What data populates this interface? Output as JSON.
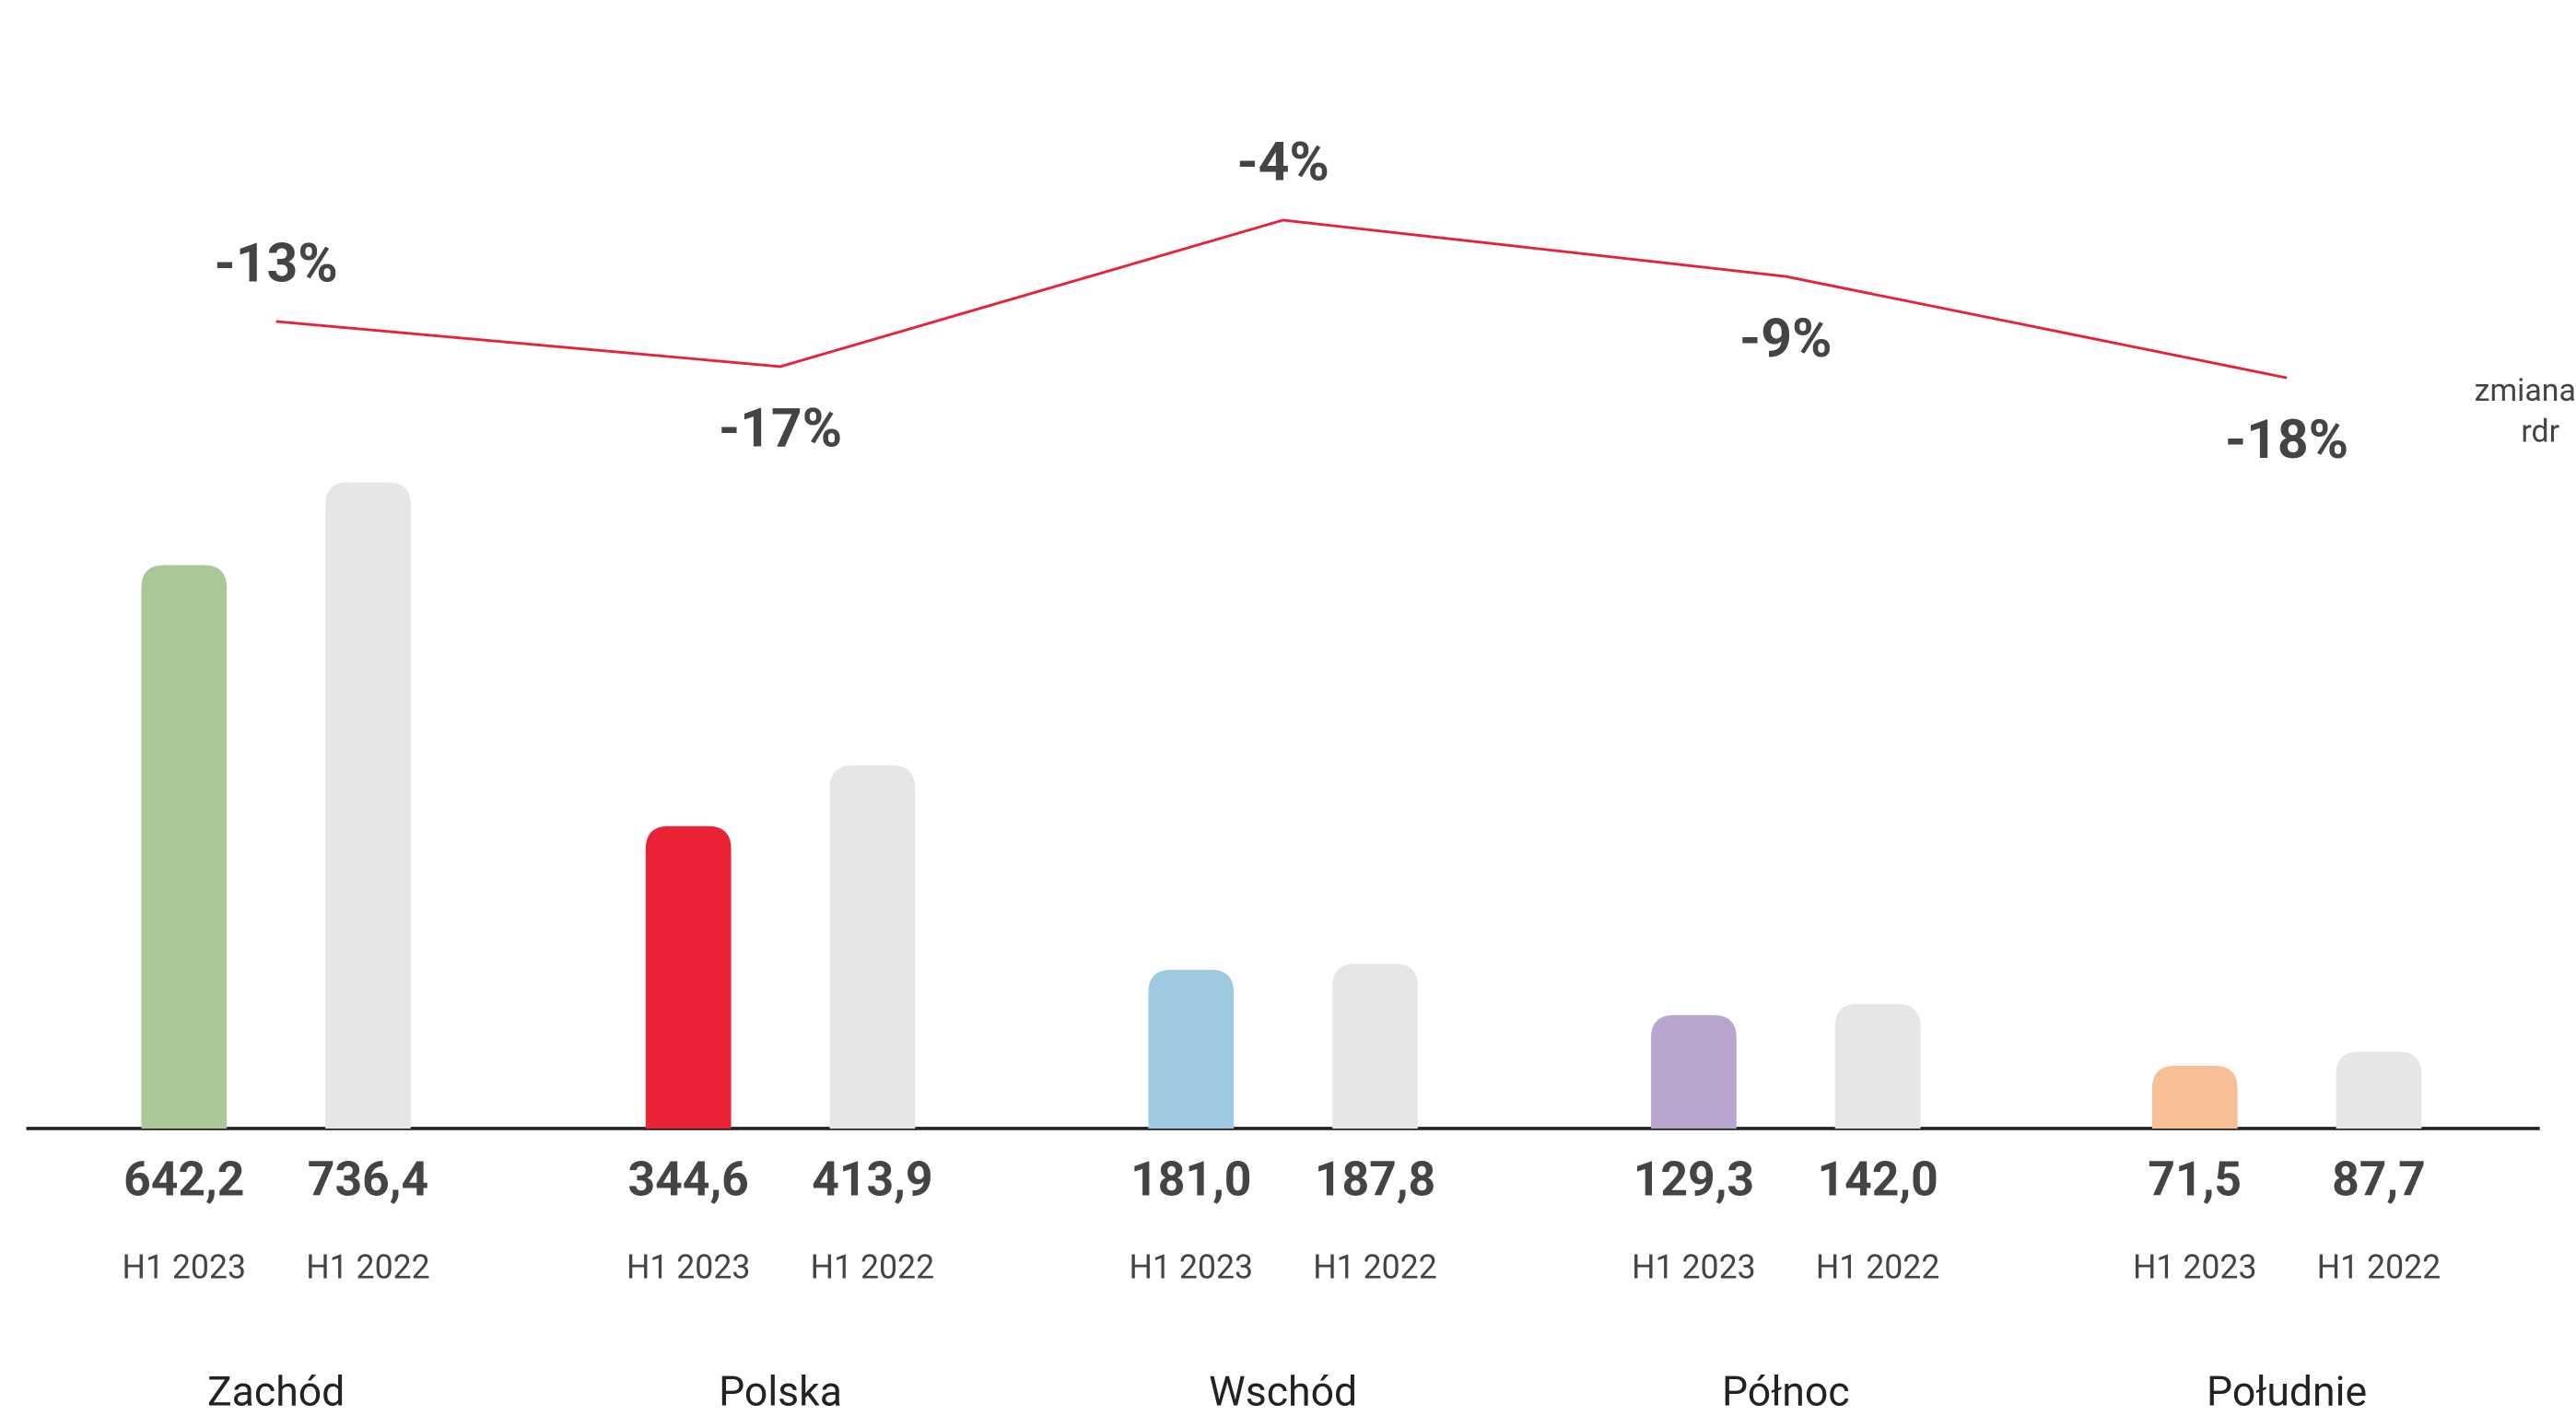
{
  "chart_data": {
    "type": "bar",
    "categories": [
      "Zachód",
      "Polska",
      "Wschód",
      "Północ",
      "Południe"
    ],
    "series": [
      {
        "name": "H1 2023",
        "colors": [
          "#abc796",
          "#ec2337",
          "#9ecae1",
          "#b9a5d0",
          "#f8bf97"
        ],
        "values": [
          642.2,
          344.6,
          181.0,
          129.3,
          71.5
        ],
        "value_labels": [
          "642,2",
          "344,6",
          "181,0",
          "129,3",
          "71,5"
        ]
      },
      {
        "name": "H1 2022",
        "color": "#e6e6e6",
        "values": [
          736.4,
          413.9,
          187.8,
          142.0,
          87.7
        ],
        "value_labels": [
          "736,4",
          "413,9",
          "187,8",
          "142,0",
          "87,7"
        ]
      }
    ],
    "change": {
      "type": "line",
      "label": [
        "zmiana",
        "rdr"
      ],
      "color": "#e8203a",
      "values": [
        -13,
        -17,
        -4,
        -9,
        -18
      ],
      "value_labels": [
        "-13%",
        "-17%",
        "-4%",
        "-9%",
        "-18%"
      ]
    }
  }
}
